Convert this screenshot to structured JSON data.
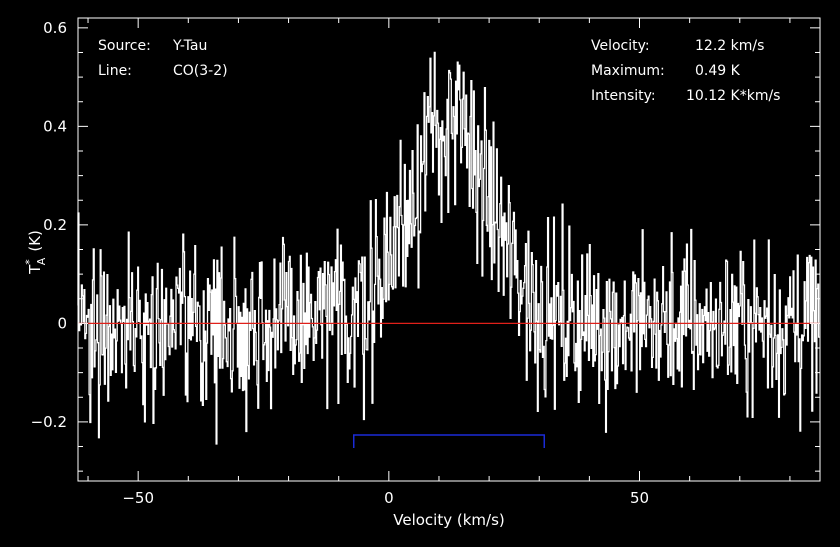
{
  "chart_data": {
    "type": "line",
    "xlabel": "Velocity (km/s)",
    "ylabel_main": "T",
    "ylabel_sup": "*",
    "ylabel_sub": "A",
    "ylabel_unit": "(K)",
    "xlim": [
      -62,
      86
    ],
    "ylim": [
      -0.32,
      0.62
    ],
    "xticks": [
      -50,
      0,
      50
    ],
    "xtick_labels": [
      "−50",
      "0",
      "50"
    ],
    "yticks": [
      -0.2,
      0,
      0.2,
      0.4,
      0.6
    ],
    "ytick_labels": [
      "−0.2",
      "0",
      "0.2",
      "0.4",
      "0.6"
    ],
    "baseline": 0,
    "window": [
      -7,
      31
    ],
    "noise_rms": 0.085,
    "profile_center": 12.2,
    "profile_peak": 0.4,
    "profile_sigma": 8.2,
    "colors": {
      "background": "#000000",
      "spectrum": "#ffffff",
      "baseline": "#e0201a",
      "window": "#1a2bd8",
      "axes": "#ffffff"
    },
    "annotations": {
      "left": [
        {
          "label": "Source:",
          "value": "Y-Tau"
        },
        {
          "label": "Line:",
          "value": "CO(3-2)"
        }
      ],
      "right": [
        {
          "label": "Velocity:",
          "value": "12.2 km/s"
        },
        {
          "label": "Maximum:",
          "value": "0.49 K"
        },
        {
          "label": "Intensity:",
          "value": "10.12 K*km/s"
        }
      ]
    }
  }
}
